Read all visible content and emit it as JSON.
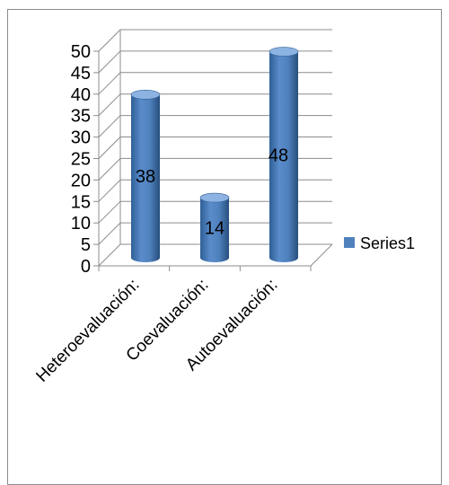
{
  "chart_data": {
    "type": "bar",
    "bar_style": "3d-cylinder",
    "categories": [
      "Heteroevaluación:",
      "Coevaluación:",
      "Autoevaluación:"
    ],
    "series": [
      {
        "name": "Series1",
        "values": [
          38,
          14,
          48
        ]
      }
    ],
    "data_labels": [
      "38",
      "14",
      "48"
    ],
    "y_ticks": [
      "0",
      "5",
      "10",
      "15",
      "20",
      "25",
      "30",
      "35",
      "40",
      "45",
      "50"
    ],
    "ylim": [
      0,
      50
    ],
    "grid": true,
    "legend_position": "right",
    "colors": {
      "bar": "#4f81bd",
      "bar_dark": "#2f5f95",
      "bar_light": "#8db3e2",
      "grid": "#8c8c8c"
    }
  }
}
